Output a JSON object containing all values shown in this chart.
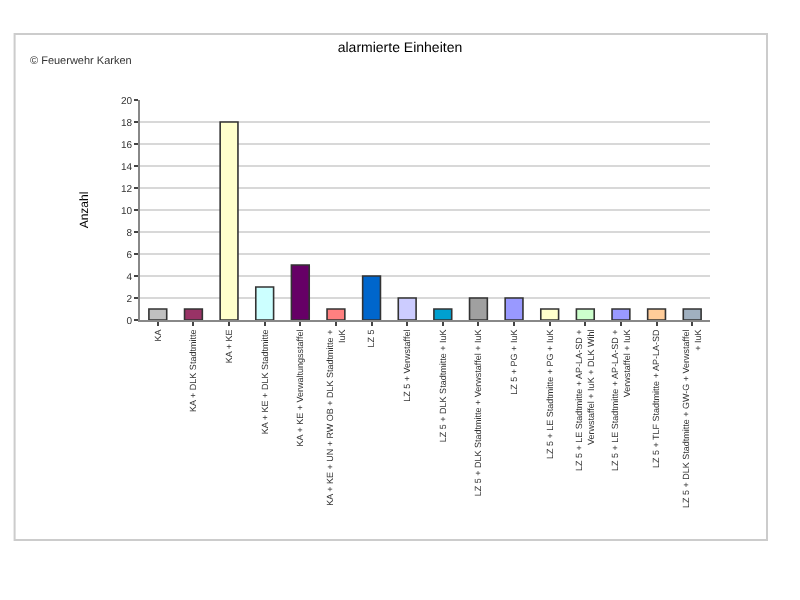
{
  "chart_data": {
    "type": "bar",
    "title": "alarmierte Einheiten",
    "ylabel": "Anzahl",
    "annotations": [
      "© Feuerwehr Karken"
    ],
    "categories": [
      "KA",
      "KA + DLK Stadtmitte",
      "KA + KE",
      "KA + KE + DLK Stadtmitte",
      "KA + KE + Verwaltungsstaffel",
      "KA + KE + UN + RW OB + DLK Stadtmitte + IuK",
      "LZ 5",
      "LZ 5 + Verwstaffel",
      "LZ 5 + DLK Stadtmitte + IuK",
      "LZ 5 + DLK Stadtmitte + Verwstaffel + IuK",
      "LZ 5 + PG + IuK",
      "LZ 5 + LE Stadtmitte + PG + IuK",
      "LZ 5 + LE Stadtmitte + AP-LA-SD + Verwstaffel + IuK + DLK Wihl",
      "LZ 5 + LE Stadtmitte + AP-LA-SD + Verwstaffel + IuK",
      "LZ 5 + TLF Stadtmitte + AP-LA-SD",
      "LZ 5 + DLK Stadtmitte + GW-G + Verwstaffel + IuK"
    ],
    "values": [
      1,
      1,
      18,
      3,
      5,
      1,
      4,
      2,
      1,
      2,
      2,
      1,
      1,
      1,
      1,
      1
    ],
    "colors": [
      "#c0c0c0",
      "#993366",
      "#ffffcc",
      "#ccffff",
      "#660066",
      "#ff8080",
      "#0066cc",
      "#ccccff",
      "#00a0d0",
      "#a0a0a0",
      "#9999ff",
      "#ffffcc",
      "#ccffcc",
      "#9999ff",
      "#ffcc99",
      "#a0b0c0"
    ],
    "ylim": [
      0,
      20
    ],
    "yticks": [
      0,
      2,
      4,
      6,
      8,
      10,
      12,
      14,
      16,
      18,
      20
    ],
    "grid": "y"
  }
}
